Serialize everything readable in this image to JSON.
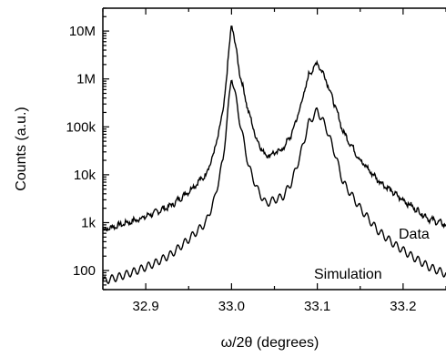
{
  "chart_data": {
    "type": "line",
    "title": "",
    "xlabel": "ω/2θ (degrees)",
    "ylabel": "Counts (a.u.)",
    "xlim": [
      32.85,
      33.25
    ],
    "ylim": [
      40,
      30000000
    ],
    "y_scale": "log",
    "x_ticks": [
      32.9,
      33.0,
      33.1,
      33.2
    ],
    "x_tick_labels": [
      "32.9",
      "33.0",
      "33.1",
      "33.2"
    ],
    "y_ticks": [
      100,
      1000,
      10000,
      100000,
      1000000,
      10000000
    ],
    "y_tick_labels": [
      "100",
      "1k",
      "10k",
      "100k",
      "1M",
      "10M"
    ],
    "grid": false,
    "legend": "none",
    "series": [
      {
        "name": "Data",
        "color": "#000000",
        "x": [
          32.85,
          32.87,
          32.89,
          32.91,
          32.93,
          32.95,
          32.97,
          32.98,
          32.99,
          32.995,
          33.0,
          33.005,
          33.01,
          33.02,
          33.03,
          33.04,
          33.05,
          33.06,
          33.07,
          33.08,
          33.09,
          33.1,
          33.11,
          33.12,
          33.13,
          33.15,
          33.17,
          33.19,
          33.21,
          33.23,
          33.25
        ],
        "y": [
          700,
          900,
          1150,
          1600,
          2300,
          4500,
          10000,
          30000,
          200000,
          1500000,
          15000000,
          4500000,
          1200000,
          200000,
          50000,
          25000,
          28000,
          35000,
          70000,
          250000,
          1200000,
          2200000,
          1000000,
          300000,
          80000,
          20000,
          8000,
          4000,
          2200,
          1200,
          900
        ]
      },
      {
        "name": "Simulation",
        "color": "#000000",
        "x": [
          32.85,
          32.87,
          32.89,
          32.91,
          32.93,
          32.95,
          32.97,
          32.98,
          32.99,
          32.995,
          33.0,
          33.005,
          33.01,
          33.02,
          33.03,
          33.04,
          33.05,
          33.06,
          33.07,
          33.08,
          33.09,
          33.1,
          33.11,
          33.12,
          33.13,
          33.15,
          33.17,
          33.19,
          33.21,
          33.23,
          33.25
        ],
        "y": [
          60,
          75,
          100,
          140,
          220,
          450,
          1000,
          3000,
          20000,
          150000,
          1200000,
          400000,
          120000,
          15000,
          5000,
          2500,
          3000,
          3500,
          7000,
          25000,
          120000,
          220000,
          100000,
          30000,
          7000,
          2000,
          700,
          350,
          200,
          120,
          85
        ]
      }
    ],
    "annotations": [
      "Data",
      "Simulation"
    ]
  }
}
